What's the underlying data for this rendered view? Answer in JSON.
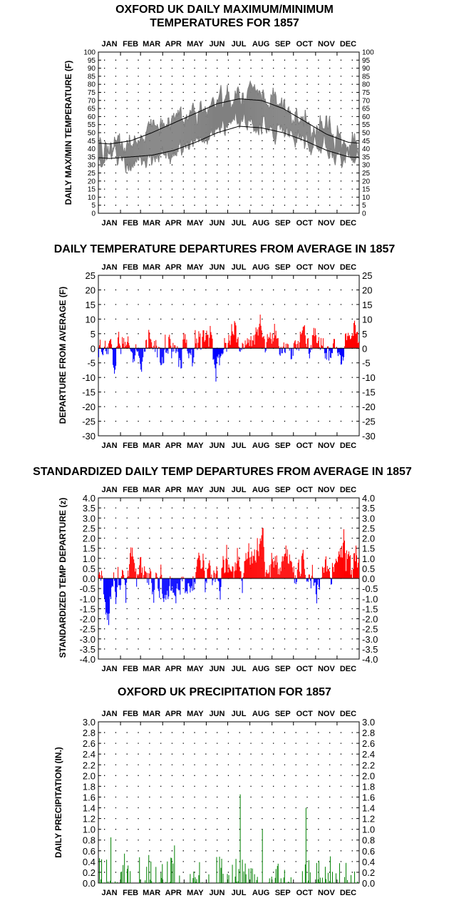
{
  "months": [
    "JAN",
    "FEB",
    "MAR",
    "APR",
    "MAY",
    "JUN",
    "JUL",
    "AUG",
    "SEP",
    "OCT",
    "NOV",
    "DEC"
  ],
  "colors": {
    "temps": "#808080",
    "normals": "#000000",
    "warm": "#ff0000",
    "cold": "#0000ff",
    "precip": "#008000",
    "grid": "#000000"
  },
  "chart_data": [
    {
      "type": "line",
      "title_lines": [
        "OXFORD UK DAILY MAXIMUM/MINIMUM",
        "TEMPERATURES FOR 1857"
      ],
      "ylabel": "DAILY MAX/MIN TEMPERATURE (F)",
      "ylim": [
        0,
        100
      ],
      "yticks": [
        0,
        5,
        10,
        15,
        20,
        25,
        30,
        35,
        40,
        45,
        50,
        55,
        60,
        65,
        70,
        75,
        80,
        85,
        90,
        95,
        100
      ],
      "series": [
        {
          "values_by_month": {
            "daily_max_monthly_mean": [
              42,
              44,
              52,
              56,
              62,
              67,
              73,
              72,
              66,
              58,
              48,
              44
            ],
            "daily_min_monthly_mean": [
              33,
              32,
              37,
              38,
              45,
              51,
              56,
              55,
              51,
              45,
              38,
              34
            ]
          }
        },
        {
          "normals": {
            "normal_max": [
              43,
              45,
              50,
              56,
              62,
              68,
              71,
              70,
              65,
              57,
              49,
              44
            ],
            "normal_min": [
              34,
              35,
              36,
              39,
              44,
              50,
              54,
              53,
              50,
              45,
              39,
              35
            ]
          }
        }
      ]
    },
    {
      "type": "bar",
      "title": "DAILY TEMPERATURE DEPARTURES FROM AVERAGE IN 1857",
      "ylabel": "DEPARTURE FROM AVERAGE (F)",
      "ylim": [
        -30,
        25
      ],
      "yticks": [
        25,
        20,
        15,
        10,
        5,
        0,
        -5,
        -10,
        -15,
        -20,
        -25,
        -30
      ],
      "monthly_departure": [
        -4,
        -1,
        2,
        -2,
        2,
        1,
        3,
        4,
        3,
        2,
        0,
        5
      ],
      "range": [
        -15,
        12
      ]
    },
    {
      "type": "bar",
      "title": "STANDARDIZED DAILY TEMP DEPARTURES FROM AVERAGE IN 1857",
      "ylabel": "STANDARDIZED TEMP DEPARTURE (z)",
      "ylim": [
        -4.0,
        4.0
      ],
      "yticks": [
        "4.0",
        "3.5",
        "3.0",
        "2.5",
        "2.0",
        "1.5",
        "1.0",
        "0.5",
        "0.0",
        "-0.5",
        "-1.0",
        "-1.5",
        "-2.0",
        "-2.5",
        "-3.0",
        "-3.5",
        "-4.0"
      ],
      "monthly_departure": [
        -0.7,
        -0.2,
        0.4,
        -0.5,
        0.5,
        0.3,
        0.8,
        1.0,
        0.7,
        0.4,
        0.0,
        0.9
      ],
      "range": [
        -2.5,
        2.5
      ]
    },
    {
      "type": "bar",
      "title": "OXFORD UK PRECIPITATION FOR 1857",
      "ylabel": "DAILY PRECIPITATION (IN.)",
      "ylim": [
        0,
        3.0
      ],
      "yticks": [
        "0.0",
        "0.2",
        "0.4",
        "0.6",
        "0.8",
        "1.0",
        "1.2",
        "1.4",
        "1.6",
        "1.8",
        "2.0",
        "2.2",
        "2.4",
        "2.6",
        "2.8",
        "3.0"
      ],
      "peaks": [
        {
          "month": "JAN",
          "value": 0.85
        },
        {
          "month": "APR",
          "value": 0.7
        },
        {
          "month": "JUL",
          "value": 1.65
        },
        {
          "month": "AUG",
          "value": 1.0
        },
        {
          "month": "OCT",
          "value": 1.4
        }
      ]
    }
  ]
}
